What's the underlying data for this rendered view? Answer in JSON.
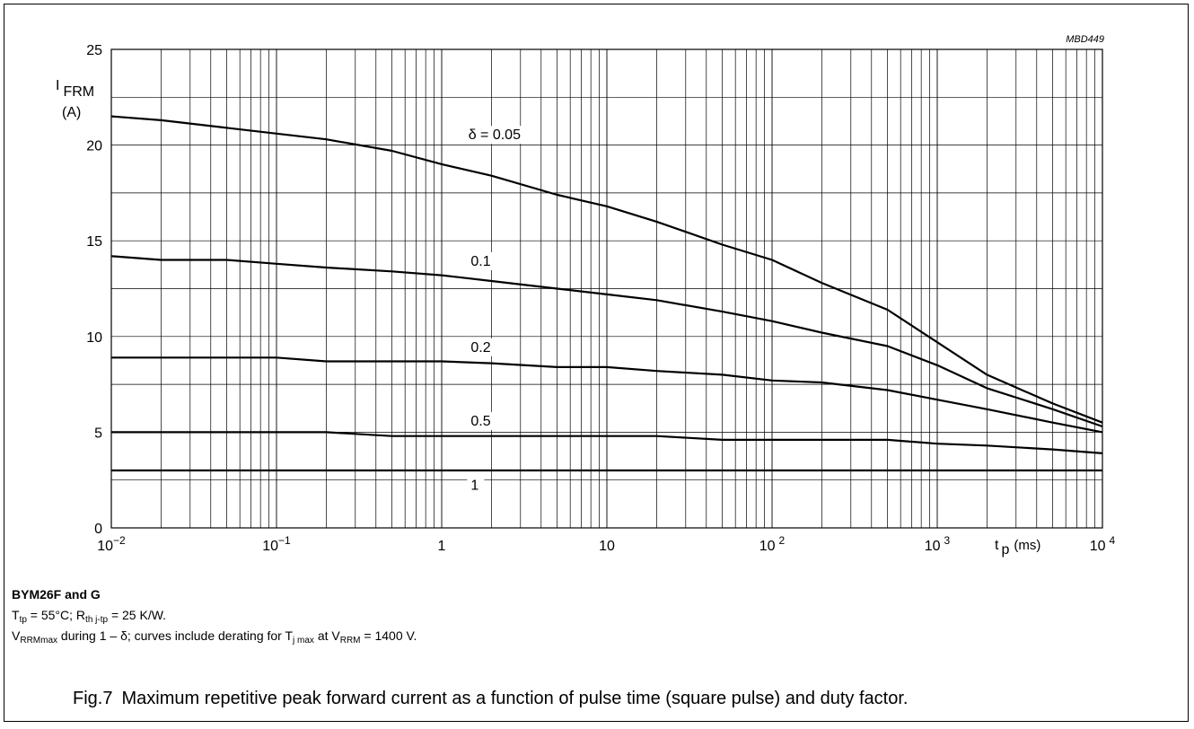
{
  "figure_id": "MBD449",
  "notes": {
    "device": "BYM26F and G",
    "line1": "T_tp = 55°C; R_th j-tp = 25 K/W.",
    "line1_parts": [
      "T",
      "tp",
      " = 55°C; R",
      "th j-tp",
      " = 25 K/W."
    ],
    "line2_parts": [
      "V",
      "RRMmax",
      " during 1 – δ; curves include derating for T",
      "j max",
      " at V",
      "RRM",
      " = 1400 V."
    ]
  },
  "caption": {
    "number": "Fig.7",
    "text": "Maximum repetitive peak forward current as a function of pulse time (square pulse) and duty factor."
  },
  "chart_data": {
    "type": "line",
    "title": "",
    "ylabel": {
      "symbol": "I",
      "subscript": "FRM",
      "unit": "(A)"
    },
    "xlabel": {
      "symbol": "t",
      "subscript": "p",
      "unit": "(ms)"
    },
    "x_scale": "log",
    "xlim": [
      0.01,
      10000
    ],
    "ylim": [
      0,
      25
    ],
    "x_ticks": [
      {
        "value": 0.01,
        "base": "10",
        "exp": "−2"
      },
      {
        "value": 0.1,
        "base": "10",
        "exp": "−1"
      },
      {
        "value": 1,
        "base": "1",
        "exp": ""
      },
      {
        "value": 10,
        "base": "10",
        "exp": ""
      },
      {
        "value": 100,
        "base": "10",
        "exp": "2"
      },
      {
        "value": 1000,
        "base": "10",
        "exp": "3"
      },
      {
        "value": 10000,
        "base": "10",
        "exp": "4"
      }
    ],
    "y_ticks": [
      0,
      5,
      10,
      15,
      20,
      25
    ],
    "grid": true,
    "series": [
      {
        "name": "δ = 0.05",
        "label_at": [
          1.45,
          20.3
        ],
        "x": [
          0.01,
          0.02,
          0.05,
          0.1,
          0.2,
          0.5,
          1,
          2,
          5,
          10,
          20,
          50,
          100,
          200,
          500,
          1000,
          2000,
          5000,
          10000
        ],
        "y": [
          21.5,
          21.3,
          20.9,
          20.6,
          20.3,
          19.7,
          19.0,
          18.4,
          17.4,
          16.8,
          16.0,
          14.8,
          14.0,
          12.8,
          11.4,
          9.7,
          8.0,
          6.5,
          5.5
        ]
      },
      {
        "name": "0.1",
        "label_at": [
          1.5,
          13.7
        ],
        "x": [
          0.01,
          0.02,
          0.05,
          0.1,
          0.2,
          0.5,
          1,
          2,
          5,
          10,
          20,
          50,
          100,
          200,
          500,
          1000,
          2000,
          5000,
          10000
        ],
        "y": [
          14.2,
          14.0,
          14.0,
          13.8,
          13.6,
          13.4,
          13.2,
          12.9,
          12.5,
          12.2,
          11.9,
          11.3,
          10.8,
          10.2,
          9.5,
          8.5,
          7.3,
          6.2,
          5.3
        ]
      },
      {
        "name": "0.2",
        "label_at": [
          1.5,
          9.2
        ],
        "x": [
          0.01,
          0.02,
          0.05,
          0.1,
          0.2,
          0.5,
          1,
          2,
          5,
          10,
          20,
          50,
          100,
          200,
          500,
          1000,
          2000,
          5000,
          10000
        ],
        "y": [
          8.9,
          8.9,
          8.9,
          8.9,
          8.7,
          8.7,
          8.7,
          8.6,
          8.4,
          8.4,
          8.2,
          8.0,
          7.7,
          7.6,
          7.2,
          6.7,
          6.2,
          5.5,
          5.0
        ]
      },
      {
        "name": "0.5",
        "label_at": [
          1.5,
          5.35
        ],
        "x": [
          0.01,
          0.02,
          0.05,
          0.1,
          0.2,
          0.5,
          1,
          2,
          5,
          10,
          20,
          50,
          100,
          200,
          500,
          1000,
          2000,
          5000,
          10000
        ],
        "y": [
          5.0,
          5.0,
          5.0,
          5.0,
          5.0,
          4.8,
          4.8,
          4.8,
          4.8,
          4.8,
          4.8,
          4.6,
          4.6,
          4.6,
          4.6,
          4.4,
          4.3,
          4.1,
          3.9
        ]
      },
      {
        "name": "1",
        "label_at": [
          1.5,
          2.0
        ],
        "x": [
          0.01,
          10000
        ],
        "y": [
          3.0,
          3.0
        ]
      }
    ]
  }
}
